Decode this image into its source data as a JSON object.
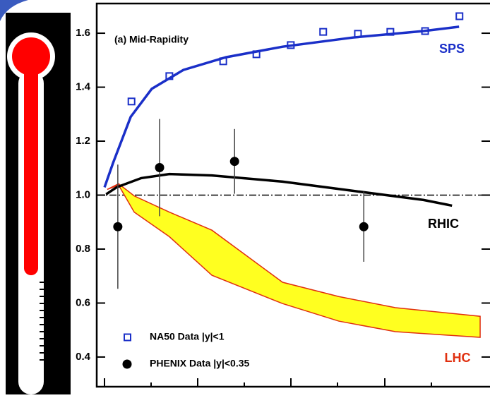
{
  "chart_data": {
    "type": "line",
    "annotation": "(a) Mid-Rapidity",
    "xlim": [
      0,
      100
    ],
    "ylim": [
      0.29,
      1.71
    ],
    "yticks": [
      {
        "value": 0.4,
        "label": "0.4"
      },
      {
        "value": 0.6,
        "label": "0.6"
      },
      {
        "value": 0.8,
        "label": "0.8"
      },
      {
        "value": 1.0,
        "label": "1.0"
      },
      {
        "value": 1.2,
        "label": "1.2"
      },
      {
        "value": 1.4,
        "label": "1.4"
      },
      {
        "value": 1.6,
        "label": "1.6"
      }
    ],
    "hline": 1.0,
    "series": [
      {
        "name": "NA50 Data |y|<1",
        "kind": "square",
        "color": "#1a2fc8",
        "x": [
          8.9,
          18.6,
          32.4,
          40.9,
          49.7,
          58.0,
          66.9,
          75.2,
          84.1,
          92.9
        ],
        "values": [
          1.347,
          1.441,
          1.496,
          1.522,
          1.556,
          1.605,
          1.598,
          1.605,
          1.608,
          1.663
        ]
      },
      {
        "name": "PHENIX Data |y|<0.35",
        "kind": "dot",
        "color": "#000000",
        "x": [
          5.4,
          16.1,
          35.3,
          68.4
        ],
        "values": [
          0.883,
          1.102,
          1.125,
          0.883
        ],
        "errors": [
          0.23,
          0.18,
          0.12,
          0.13
        ]
      },
      {
        "name": "SPS",
        "kind": "curve",
        "color": "#1a2fc8",
        "x": [
          2,
          4.2,
          8.7,
          14.1,
          22.2,
          33.1,
          47.6,
          65.6,
          83.7,
          92.8
        ],
        "values": [
          1.029,
          1.12,
          1.29,
          1.394,
          1.464,
          1.511,
          1.55,
          1.584,
          1.608,
          1.624
        ]
      },
      {
        "name": "RHIC",
        "kind": "curve",
        "color": "#000000",
        "x": [
          2.4,
          5.1,
          11.4,
          18.6,
          29.5,
          47.6,
          65.6,
          83.7,
          91
        ],
        "values": [
          1.003,
          1.029,
          1.063,
          1.078,
          1.073,
          1.05,
          1.016,
          0.982,
          0.961
        ]
      },
      {
        "name": "LHC",
        "kind": "band",
        "color": "#ffff20",
        "edge": "#e03010",
        "x": [
          2.7,
          5.6,
          9.6,
          18.6,
          29.5,
          47.6,
          62,
          76.5,
          98.2
        ],
        "values": [
          1.021,
          1.042,
          0.997,
          0.937,
          0.87,
          0.677,
          0.624,
          0.583,
          0.551
        ],
        "lower": [
          1.021,
          1.037,
          0.937,
          0.846,
          0.703,
          0.598,
          0.533,
          0.494,
          0.473
        ]
      }
    ]
  }
}
